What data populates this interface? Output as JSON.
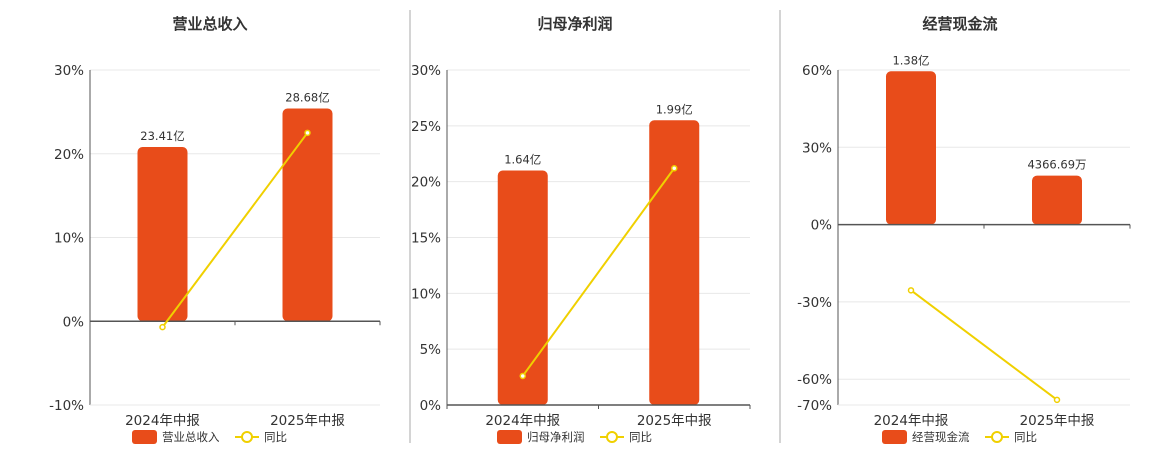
{
  "colors": {
    "bar": "#e84c1a",
    "line": "#f0d000",
    "grid": "#e8e8e8",
    "axis": "#555555",
    "divider": "#aaaaaa"
  },
  "chart_data": [
    {
      "type": "bar",
      "title": "营业总收入",
      "categories": [
        "2024年中报",
        "2025年中报"
      ],
      "ylim": [
        -10,
        30
      ],
      "yticks": [
        -10,
        0,
        10,
        20,
        30
      ],
      "ytick_labels": [
        "-10%",
        "0%",
        "10%",
        "20%",
        "30%"
      ],
      "series": [
        {
          "name": "营业总收入",
          "kind": "bar",
          "values": [
            20.8,
            25.4
          ],
          "data_labels": [
            "23.41亿",
            "28.68亿"
          ]
        },
        {
          "name": "同比",
          "kind": "line",
          "values": [
            -0.7,
            22.5
          ]
        }
      ],
      "legend": "bottom-center",
      "grid": true
    },
    {
      "type": "bar",
      "title": "归母净利润",
      "categories": [
        "2024年中报",
        "2025年中报"
      ],
      "ylim": [
        0,
        30
      ],
      "yticks": [
        0,
        5,
        10,
        15,
        20,
        25,
        30
      ],
      "ytick_labels": [
        "0%",
        "5%",
        "10%",
        "15%",
        "20%",
        "25%",
        "30%"
      ],
      "series": [
        {
          "name": "归母净利润",
          "kind": "bar",
          "values": [
            21.0,
            25.5
          ],
          "data_labels": [
            "1.64亿",
            "1.99亿"
          ]
        },
        {
          "name": "同比",
          "kind": "line",
          "values": [
            2.6,
            21.2
          ]
        }
      ],
      "legend": "bottom-center",
      "grid": true
    },
    {
      "type": "bar",
      "title": "经营现金流",
      "categories": [
        "2024年中报",
        "2025年中报"
      ],
      "ylim": [
        -70,
        60
      ],
      "yticks": [
        -70,
        -60,
        -30,
        0,
        30,
        60
      ],
      "ytick_labels": [
        "-70%",
        "-60%",
        "-30%",
        "0%",
        "30%",
        "60%"
      ],
      "series": [
        {
          "name": "经营现金流",
          "kind": "bar",
          "values": [
            59.5,
            19.0
          ],
          "data_labels": [
            "1.38亿",
            "4366.69万"
          ]
        },
        {
          "name": "同比",
          "kind": "line",
          "values": [
            -25.5,
            -68.0
          ]
        }
      ],
      "legend": "bottom-center",
      "grid": true
    }
  ]
}
